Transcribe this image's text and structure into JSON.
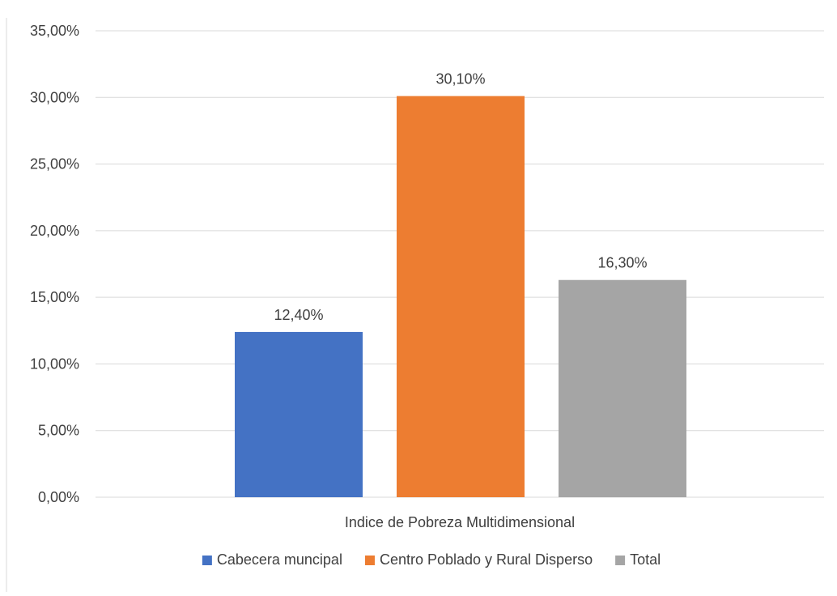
{
  "chart_data": {
    "type": "bar",
    "title": "",
    "xlabel": "",
    "ylabel": "",
    "categories": [
      "Indice de Pobreza Multidimensional"
    ],
    "series": [
      {
        "name": "Cabecera muncipal",
        "values": [
          12.4
        ],
        "label": "12,40%",
        "color": "#4472C4"
      },
      {
        "name": "Centro Poblado y Rural Disperso",
        "values": [
          30.1
        ],
        "label": "30,10%",
        "color": "#ED7D31"
      },
      {
        "name": "Total",
        "values": [
          16.3
        ],
        "label": "16,30%",
        "color": "#A5A5A5"
      }
    ],
    "ylim": [
      0,
      35
    ],
    "yticks": [
      0,
      5,
      10,
      15,
      20,
      25,
      30,
      35
    ],
    "ytick_labels": [
      "0,00%",
      "5,00%",
      "10,00%",
      "15,00%",
      "20,00%",
      "25,00%",
      "30,00%",
      "35,00%"
    ],
    "grid": true,
    "legend_position": "bottom",
    "colors": {
      "grid": "#D9D9D9",
      "text": "#404040",
      "border": "#D9D9D9"
    }
  }
}
